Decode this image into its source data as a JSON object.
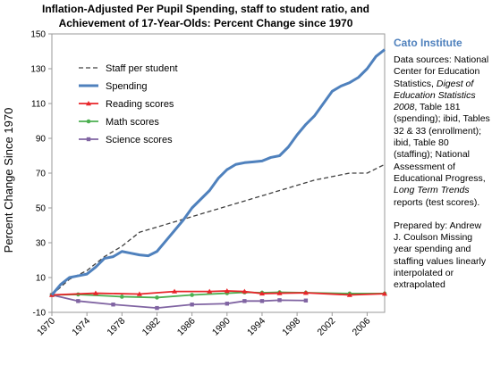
{
  "title_line1": "Inflation-Adjusted Per Pupil Spending, staff to student ratio, and",
  "title_line2": "Achievement of 17-Year-Olds:  Percent Change since 1970",
  "source_org": "Cato Institute",
  "notes": {
    "a": "Data sources: National Center for Education Statistics,",
    "b": "Digest of Education Statistics 2008",
    "c": ", Table 181 (spending); ibid, Tables 32 & 33 (enrollment); ibid, Table 80 (staffing); National Assessment of Educational Progress,",
    "d": "Long Term Trends",
    "e": "reports (test scores).",
    "prepared": "Prepared by: Andrew J. Coulson Missing year spending and staffing values linearly interpolated or extrapolated"
  },
  "colors": {
    "staff": "#404040",
    "spending": "#4f81bd",
    "reading": "#e8252a",
    "math": "#4caf50",
    "science": "#8064a2",
    "accent": "#4f81bd"
  },
  "chart_data": {
    "type": "line",
    "title": "Inflation-Adjusted Per Pupil Spending, staff to student ratio, and Achievement of 17-Year-Olds:  Percent Change since 1970",
    "ylabel": "Percent Change Since 1970",
    "xlabel": "",
    "xlim": [
      1970,
      2008
    ],
    "ylim": [
      -10,
      150
    ],
    "x_ticks": [
      1970,
      1974,
      1978,
      1982,
      1986,
      1990,
      1994,
      1998,
      2002,
      2006
    ],
    "y_ticks": [
      -10,
      10,
      30,
      50,
      70,
      90,
      110,
      130,
      150
    ],
    "grid": false,
    "legend": "top-left",
    "series": [
      {
        "name": "Staff per student",
        "style": "dashed",
        "x": [
          1970,
          1972,
          1974,
          1976,
          1978,
          1980,
          1982,
          1984,
          1986,
          1988,
          1990,
          1992,
          1994,
          1996,
          1998,
          2000,
          2002,
          2004,
          2006,
          2008
        ],
        "y": [
          0,
          9,
          14,
          22,
          28,
          36,
          39,
          42,
          45,
          48,
          51,
          54,
          57,
          60,
          63,
          66,
          68,
          70,
          70,
          75
        ]
      },
      {
        "name": "Spending",
        "style": "solid",
        "x": [
          1970,
          1971,
          1972,
          1973,
          1974,
          1975,
          1976,
          1977,
          1978,
          1979,
          1980,
          1981,
          1982,
          1983,
          1984,
          1985,
          1986,
          1987,
          1988,
          1989,
          1990,
          1991,
          1992,
          1993,
          1994,
          1995,
          1996,
          1997,
          1998,
          1999,
          2000,
          2001,
          2002,
          2003,
          2004,
          2005,
          2006,
          2007,
          2008
        ],
        "y": [
          0,
          6,
          10,
          11,
          12,
          16,
          21,
          22,
          25,
          24,
          23,
          22.5,
          25,
          31,
          37,
          43,
          50,
          55,
          60,
          67,
          72,
          75,
          76,
          76.5,
          77,
          79,
          80,
          85,
          92,
          98,
          103,
          110,
          117,
          120,
          122,
          125,
          130,
          137,
          141
        ]
      },
      {
        "name": "Reading scores",
        "marker": "triangle",
        "x": [
          1970,
          1975,
          1980,
          1984,
          1988,
          1990,
          1992,
          1994,
          1996,
          1999,
          2004,
          2008
        ],
        "y": [
          0,
          1,
          0.5,
          2,
          2,
          2.3,
          2,
          0.8,
          1,
          1.2,
          0,
          0.7
        ]
      },
      {
        "name": "Math scores",
        "marker": "circle",
        "x": [
          1970,
          1973,
          1978,
          1982,
          1986,
          1990,
          1992,
          1994,
          1996,
          1999,
          2004,
          2008
        ],
        "y": [
          0,
          0.3,
          -1,
          -1.5,
          0,
          1,
          1.5,
          1.3,
          1.5,
          1.3,
          0.8,
          0.8
        ]
      },
      {
        "name": "Science scores",
        "marker": "square",
        "x": [
          1970,
          1973,
          1977,
          1982,
          1986,
          1990,
          1992,
          1994,
          1996,
          1999
        ],
        "y": [
          0,
          -3.5,
          -5.5,
          -7.5,
          -5.5,
          -5,
          -3.5,
          -3.5,
          -3,
          -3.2
        ]
      }
    ]
  }
}
